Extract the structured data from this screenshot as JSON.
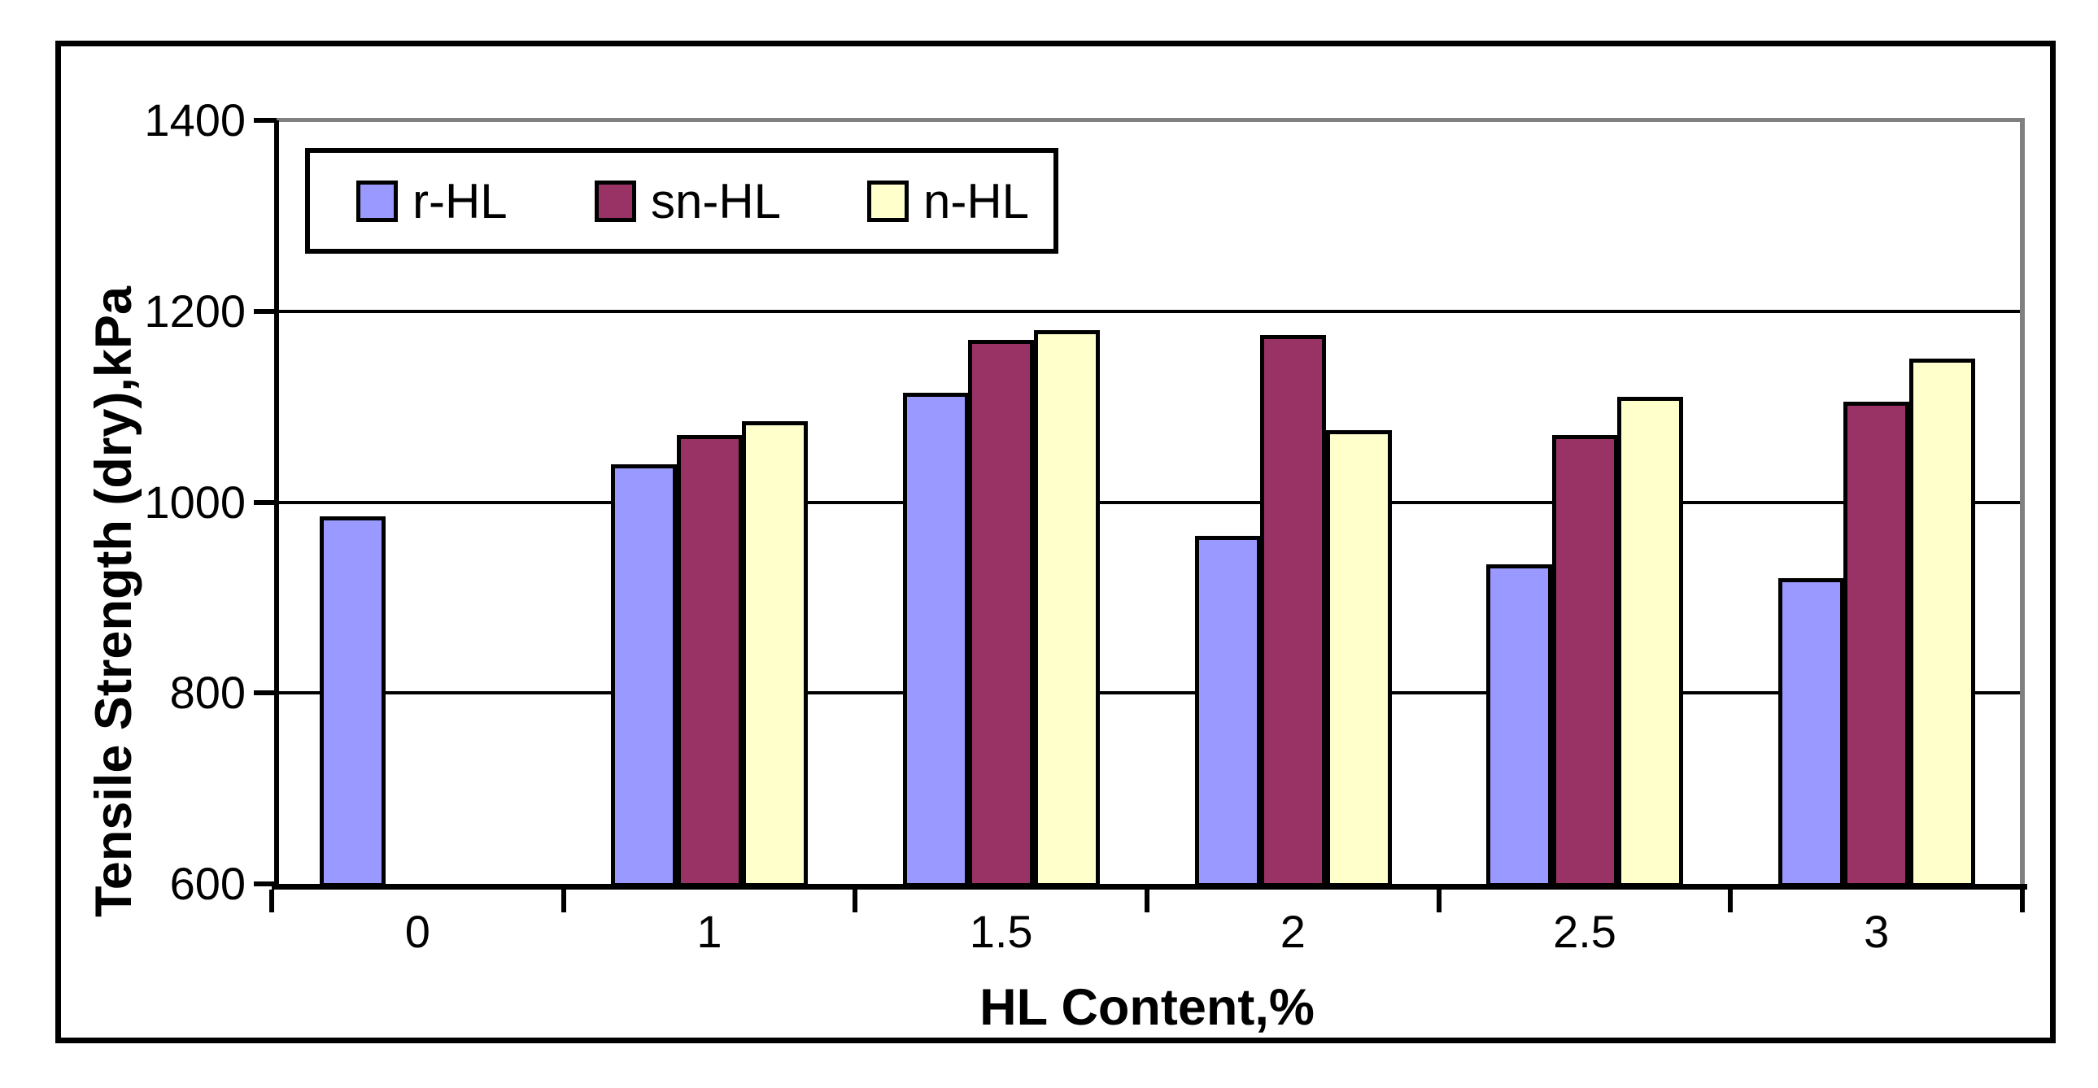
{
  "chart_data": {
    "type": "bar",
    "title": "",
    "xlabel": "HL Content,%",
    "ylabel": "Tensile Strength (dry),kPa",
    "categories": [
      "0",
      "1",
      "1.5",
      "2",
      "2.5",
      "3"
    ],
    "series": [
      {
        "name": "r-HL",
        "color": "#9999FF",
        "values": [
          985,
          1040,
          1115,
          965,
          935,
          920
        ]
      },
      {
        "name": "sn-HL",
        "color": "#993366",
        "values": [
          null,
          1070,
          1170,
          1175,
          1070,
          1105
        ]
      },
      {
        "name": "n-HL",
        "color": "#FFFFCC",
        "values": [
          null,
          1085,
          1180,
          1075,
          1110,
          1150
        ]
      }
    ],
    "ylim": [
      600,
      1400
    ],
    "y_ticks": [
      600,
      800,
      1000,
      1200,
      1400
    ],
    "grid": true,
    "legend_position": "top-left-inside",
    "legend_labels": [
      "r-HL",
      "sn-HL",
      "n-HL"
    ],
    "bar_border_color": "#000000",
    "gridline_color": "#000000",
    "shadow_color": "#808080",
    "axis_color": "#000000"
  }
}
